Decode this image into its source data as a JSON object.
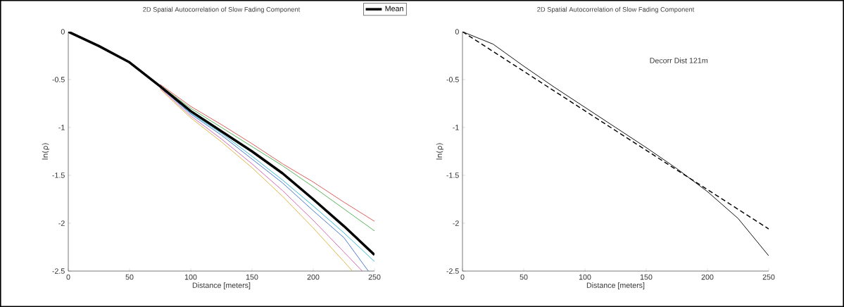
{
  "chart_data": [
    {
      "type": "line",
      "title": "2D Spatial Autocorrelation of Slow Fading Component",
      "xlabel": "Distance [meters]",
      "ylabel": "ln(ρ)",
      "xlim": [
        0,
        250
      ],
      "ylim": [
        -2.5,
        0
      ],
      "xticks": [
        0,
        50,
        100,
        150,
        200,
        250
      ],
      "yticks": [
        -2.5,
        -2,
        -1.5,
        -1,
        -0.5,
        0
      ],
      "legend": "top right",
      "series": [
        {
          "color": "#d9534f",
          "x": [
            75,
            100,
            125,
            150,
            175,
            200,
            225,
            250
          ],
          "values": [
            -0.55,
            -0.78,
            -0.97,
            -1.17,
            -1.38,
            -1.57,
            -1.78,
            -1.98
          ]
        },
        {
          "color": "#4caf50",
          "x": [
            75,
            100,
            125,
            150,
            175,
            200,
            225,
            250
          ],
          "values": [
            -0.56,
            -0.8,
            -1.0,
            -1.2,
            -1.4,
            -1.62,
            -1.85,
            -2.08
          ]
        },
        {
          "color": "#29b6d6",
          "x": [
            75,
            100,
            125,
            150,
            175,
            200,
            225,
            250
          ],
          "values": [
            -0.58,
            -0.85,
            -1.06,
            -1.3,
            -1.55,
            -1.82,
            -2.1,
            -2.4
          ]
        },
        {
          "color": "#3f6fd1",
          "x": [
            75,
            100,
            125,
            150,
            175,
            200,
            225,
            245
          ],
          "values": [
            -0.58,
            -0.86,
            -1.08,
            -1.33,
            -1.58,
            -1.87,
            -2.15,
            -2.5
          ]
        },
        {
          "color": "#d45fb0",
          "x": [
            75,
            100,
            125,
            150,
            175,
            200,
            225,
            240
          ],
          "values": [
            -0.59,
            -0.88,
            -1.12,
            -1.38,
            -1.66,
            -1.97,
            -2.3,
            -2.5
          ]
        },
        {
          "color": "#d9b33a",
          "x": [
            75,
            100,
            125,
            150,
            175,
            200,
            225,
            232
          ],
          "values": [
            -0.6,
            -0.9,
            -1.15,
            -1.42,
            -1.72,
            -2.05,
            -2.4,
            -2.5
          ]
        },
        {
          "name": "Mean",
          "color": "#000000",
          "x": [
            0,
            25,
            50,
            75,
            100,
            125,
            150,
            175,
            200,
            225,
            250
          ],
          "values": [
            0,
            -0.15,
            -0.32,
            -0.57,
            -0.83,
            -1.04,
            -1.25,
            -1.48,
            -1.75,
            -2.03,
            -2.33
          ]
        }
      ]
    },
    {
      "type": "line",
      "title": "2D Spatial Autocorrelation of Slow Fading Component",
      "xlabel": "Distance [meters]",
      "ylabel": "ln(ρ)",
      "xlim": [
        0,
        250
      ],
      "ylim": [
        -2.5,
        0
      ],
      "xticks": [
        0,
        50,
        100,
        150,
        200,
        250
      ],
      "yticks": [
        -2.5,
        -2,
        -1.5,
        -1,
        -0.5,
        0
      ],
      "annotations": [
        "Decorr Dist 121m"
      ],
      "series": [
        {
          "color": "#000000",
          "x": [
            0,
            25,
            50,
            75,
            100,
            125,
            150,
            175,
            200,
            225,
            250
          ],
          "values": [
            0,
            -0.13,
            -0.36,
            -0.58,
            -0.79,
            -1.0,
            -1.21,
            -1.43,
            -1.67,
            -1.95,
            -2.34
          ]
        },
        {
          "color": "#000000",
          "line_style": "dashed",
          "x": [
            0,
            121,
            250
          ],
          "values": [
            0,
            -1,
            -2.06
          ]
        }
      ]
    }
  ]
}
